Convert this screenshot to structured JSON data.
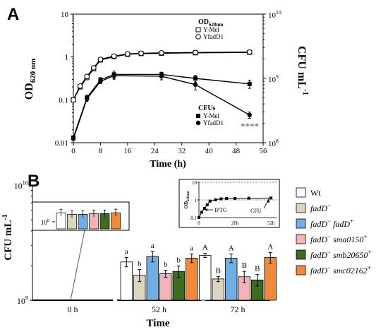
{
  "chart_data": [
    {
      "panel": "A",
      "type": "line",
      "xlabel": "Time (h)",
      "ylabel_left": {
        "main": "OD",
        "sub": "620 nm"
      },
      "ylabel_right": {
        "main": "CFU mL",
        "sup": "-1"
      },
      "xlim": [
        0,
        56
      ],
      "ylim_left": [
        0.01,
        10
      ],
      "ylim_right": [
        100000000,
        10000000000
      ],
      "log_scale": {
        "left": true,
        "right": true
      },
      "x_ticks": [
        "0",
        "8",
        "16",
        "24",
        "32",
        "40",
        "48",
        "56"
      ],
      "y_ticks_left": [
        "0.01",
        "0.1",
        "1",
        "10"
      ],
      "y_ticks_right": [
        {
          "base": "10",
          "exp": "8"
        },
        {
          "base": "10",
          "exp": "9"
        },
        {
          "base": "10",
          "exp": "10"
        }
      ],
      "legend_od": {
        "title": "OD",
        "title_sub": "620nm",
        "items": [
          "Y-Mel",
          "YfadD1"
        ],
        "placement": "top-right"
      },
      "legend_cfu": {
        "title": "CFUs",
        "items": [
          "Y-Mel",
          "YfadD1"
        ],
        "placement": "right"
      },
      "annotation": "****",
      "series": [
        {
          "name": "Y-Mel",
          "axis": "left",
          "marker": "open-square",
          "x": [
            0,
            2,
            4,
            6,
            8,
            12,
            16,
            20,
            26,
            36,
            52
          ],
          "y": [
            0.1,
            0.2,
            0.33,
            0.53,
            0.85,
            1.02,
            1.15,
            1.2,
            1.22,
            1.25,
            1.28
          ]
        },
        {
          "name": "YfadD1",
          "axis": "left",
          "marker": "open-circle",
          "x": [
            0,
            2,
            4,
            6,
            8,
            12,
            16,
            20,
            26,
            36,
            52
          ],
          "y": [
            0.1,
            0.21,
            0.35,
            0.56,
            0.88,
            1.05,
            1.18,
            1.22,
            1.25,
            1.27,
            1.3
          ]
        },
        {
          "name": "Y-Mel",
          "axis": "right",
          "marker": "filled-square",
          "x": [
            0,
            4,
            8,
            12,
            26,
            36,
            52
          ],
          "y": [
            120000000,
            500000000,
            950000000,
            1150000000,
            1150000000,
            1000000000,
            820000000
          ],
          "err": [
            0,
            50000000,
            80000000,
            150000000,
            100000000,
            120000000,
            120000000
          ]
        },
        {
          "name": "YfadD1",
          "axis": "right",
          "marker": "filled-circle",
          "x": [
            0,
            4,
            8,
            12,
            26,
            36,
            52
          ],
          "y": [
            115000000,
            480000000,
            900000000,
            1100000000,
            1080000000,
            800000000,
            270000000
          ],
          "err": [
            0,
            40000000,
            70000000,
            130000000,
            130000000,
            140000000,
            30000000
          ]
        }
      ]
    },
    {
      "panel": "B",
      "type": "bar",
      "ylabel": {
        "main": "CFU mL",
        "sup": "-1"
      },
      "xlabel": "Time",
      "log_scale": true,
      "ylim": [
        1000000000,
        10000000000
      ],
      "y_ticks": [
        {
          "base": "10",
          "exp": "9"
        },
        {
          "base": "10",
          "exp": "10"
        }
      ],
      "categories": [
        "0 h",
        "52 h",
        "72 h"
      ],
      "series": [
        {
          "name": "Wt",
          "italic": false,
          "sup": "",
          "color": "#ffffff",
          "values": [
            null,
            2150000000,
            2450000000
          ],
          "err": [
            0,
            200000000,
            100000000
          ],
          "letters": [
            "",
            "a",
            "A"
          ]
        },
        {
          "name": "fadD",
          "italic": true,
          "sup": "−",
          "color": "#ddd5c0",
          "values": [
            null,
            1650000000,
            1530000000
          ],
          "err": [
            0,
            200000000,
            80000000
          ],
          "letters": [
            "",
            "b",
            "B"
          ]
        },
        {
          "name": "fadD",
          "italic": true,
          "sup": "−",
          "name2": "fadD",
          "sup2": "+",
          "color": "#71aee2",
          "values": [
            null,
            2400000000,
            2320000000
          ],
          "err": [
            0,
            250000000,
            200000000
          ],
          "letters": [
            "",
            "a",
            "A"
          ]
        },
        {
          "name": "fadD",
          "italic": true,
          "sup": "−",
          "name2": "sma0150",
          "sup2": "+",
          "color": "#f2b4b8",
          "values": [
            null,
            1700000000,
            1600000000
          ],
          "err": [
            0,
            120000000,
            180000000
          ],
          "letters": [
            "",
            "b",
            "B"
          ]
        },
        {
          "name": "fadD",
          "italic": true,
          "sup": "−",
          "name2": "smb20650",
          "sup2": "+",
          "color": "#3d6b20",
          "values": [
            null,
            1780000000,
            1500000000
          ],
          "err": [
            0,
            200000000,
            170000000
          ],
          "letters": [
            "",
            "b",
            "B"
          ]
        },
        {
          "name": "fadD",
          "italic": true,
          "sup": "−",
          "name2": "smc02162",
          "sup2": "+",
          "color": "#f08a3a",
          "values": [
            null,
            2320000000,
            2350000000
          ],
          "err": [
            0,
            200000000,
            250000000
          ],
          "letters": [
            "",
            "a",
            "A"
          ]
        }
      ],
      "inset_zero": {
        "y_tick": {
          "base": "10",
          "exp": "8"
        },
        "values": [
          490000000,
          470000000,
          470000000,
          480000000,
          480000000,
          490000000
        ]
      },
      "inset_growth": {
        "ylabel": {
          "main": "OD",
          "sub": "620nm"
        },
        "y_ticks": [
          "0.1",
          "1",
          "10"
        ],
        "x_ticks": [
          "0",
          "26h",
          "52h"
        ],
        "labels": [
          "IPTG",
          "CFU"
        ],
        "points": {
          "x": [
            0,
            2,
            4,
            6,
            8,
            12,
            16,
            20,
            26,
            36,
            52
          ],
          "y": [
            0.1,
            0.2,
            0.33,
            0.53,
            0.85,
            1.02,
            1.15,
            1.2,
            1.22,
            1.25,
            1.28
          ]
        }
      }
    }
  ],
  "panels": {
    "a_label": "A",
    "b_label": "B"
  },
  "colors": {
    "axis": "#000000",
    "line": "#000000",
    "annotation": "#7f7f7f"
  }
}
